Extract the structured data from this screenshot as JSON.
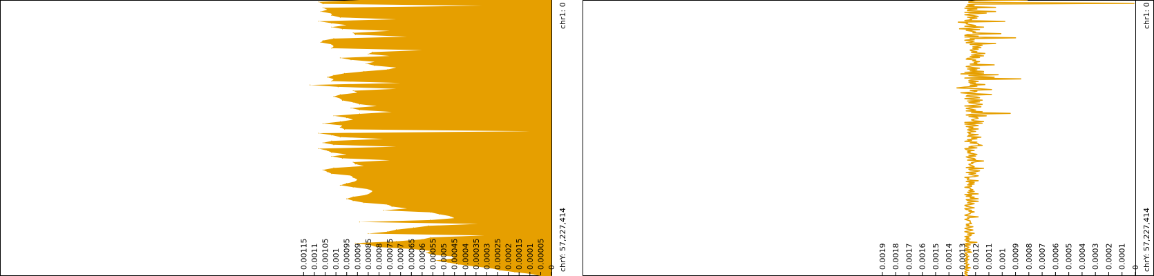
{
  "chart_data": [
    {
      "type": "area",
      "orientation": "vertical",
      "color": "#e69f00",
      "genome_start_label": "chr1: 0",
      "genome_end_label": "chrY: 57,227,414",
      "ylim": [
        0,
        0.00118
      ],
      "ticks": [
        {
          "value": 0,
          "label": "0"
        },
        {
          "value": 5e-05,
          "label": "0.00005"
        },
        {
          "value": 0.0001,
          "label": "0.0001"
        },
        {
          "value": 0.00015,
          "label": "0.00015"
        },
        {
          "value": 0.0002,
          "label": "0.0002"
        },
        {
          "value": 0.00025,
          "label": "0.00025"
        },
        {
          "value": 0.0003,
          "label": "0.0003"
        },
        {
          "value": 0.00035,
          "label": "0.00035"
        },
        {
          "value": 0.0004,
          "label": "0.0004"
        },
        {
          "value": 0.00045,
          "label": "0.00045"
        },
        {
          "value": 0.0005,
          "label": "0.0005"
        },
        {
          "value": 0.00055,
          "label": "0.00055"
        },
        {
          "value": 0.0006,
          "label": "0.0006"
        },
        {
          "value": 0.00065,
          "label": "0.00065"
        },
        {
          "value": 0.0007,
          "label": "0.0007"
        },
        {
          "value": 0.00075,
          "label": "0.00075"
        },
        {
          "value": 0.0008,
          "label": "0.0008"
        },
        {
          "value": 0.00085,
          "label": "0.00085"
        },
        {
          "value": 0.0009,
          "label": "0.0009"
        },
        {
          "value": 0.00095,
          "label": "0.00095"
        },
        {
          "value": 0.001,
          "label": "0.001"
        },
        {
          "value": 0.00105,
          "label": "0.00105"
        },
        {
          "value": 0.0011,
          "label": "0.0011"
        },
        {
          "value": 0.00115,
          "label": "0.00115"
        }
      ],
      "values": [
        0.00089,
        0.00108,
        0.00106,
        0.00032,
        0.00106,
        0.00104,
        0.00107,
        0.00102,
        0.00102,
        0.00098,
        0.00072,
        0.00108,
        0.00102,
        0.00095,
        0.00102,
        0.00097,
        0.00075,
        0.00092,
        0.00091,
        0.00067,
        0.00101,
        0.00106,
        0.00107,
        0.00102,
        0.00101,
        0.00102,
        0.0006,
        0.00083,
        0.00085,
        0.00075,
        0.00098,
        0.00093,
        0.00082,
        0.00086,
        0.00082,
        0.00072,
        0.00076,
        0.00087,
        0.00096,
        0.00101,
        0.00104,
        0.00101,
        0.00102,
        0.0007,
        0.00112,
        0.00099,
        0.00072,
        0.00092,
        0.0009,
        0.00098,
        0.00101,
        0.00098,
        0.00097,
        0.00092,
        0.00089,
        0.00081,
        0.00093,
        0.00089,
        0.00074,
        0.00089,
        0.00101,
        0.00095,
        0.00092,
        0.00098,
        0.00106,
        0.00097,
        0.00098,
        0.00096,
        0.0001,
        0.00108,
        0.00102,
        0.00098,
        0.00078,
        0.00102,
        0.00106,
        0.00101,
        0.00072,
        0.00108,
        0.00104,
        0.00102,
        0.00095,
        0.00102,
        0.00097,
        0.00075,
        0.00092,
        0.00091,
        0.00087,
        0.00101,
        0.00106,
        0.00104,
        0.00102,
        0.00093,
        0.00092,
        0.0009,
        0.00091,
        0.00095,
        0.00098,
        0.00092,
        0.00085,
        0.00083,
        0.00084,
        0.00086,
        0.00092,
        0.00095,
        0.00092,
        0.00087,
        0.00076,
        0.00074,
        0.00067,
        0.00078,
        0.00056,
        0.00052,
        0.00047,
        0.00045,
        0.00056,
        0.00089,
        0.00034,
        0.00057,
        0.00064,
        0.00072,
        0.00076,
        0.00085,
        0.00031,
        0.00056,
        0.0006,
        0.00072,
        0.00091,
        0.00084,
        0.00081,
        0.00065,
        0.00056,
        0.00058,
        0.00055,
        0.00045,
        0.00046,
        0.00054,
        0.00048,
        0.00043,
        0.00036,
        0.00028,
        0.00024,
        0.00017,
        9e-05,
        5e-05
      ]
    },
    {
      "type": "line",
      "orientation": "vertical",
      "color": "#e69f00",
      "genome_start_label": "chr1: 0",
      "genome_end_label": "chrY: 57,227,414",
      "ylim": [
        0,
        0.00192
      ],
      "ticks": [
        {
          "value": 0,
          "label": "0"
        },
        {
          "value": 0.0001,
          "label": "0.0001"
        },
        {
          "value": 0.0002,
          "label": "0.0002"
        },
        {
          "value": 0.0003,
          "label": "0.0003"
        },
        {
          "value": 0.0004,
          "label": "0.0004"
        },
        {
          "value": 0.0005,
          "label": "0.0005"
        },
        {
          "value": 0.0006,
          "label": "0.0006"
        },
        {
          "value": 0.0007,
          "label": "0.0007"
        },
        {
          "value": 0.0008,
          "label": "0.0008"
        },
        {
          "value": 0.0009,
          "label": "0.0009"
        },
        {
          "value": 0.001,
          "label": "0.001"
        },
        {
          "value": 0.0011,
          "label": "0.0011"
        },
        {
          "value": 0.0012,
          "label": "0.0012"
        },
        {
          "value": 0.0013,
          "label": "0.0013"
        },
        {
          "value": 0.0014,
          "label": "0.0014"
        },
        {
          "value": 0.0015,
          "label": "0.0015"
        },
        {
          "value": 0.0016,
          "label": "0.0016"
        },
        {
          "value": 0.0017,
          "label": "0.0017"
        },
        {
          "value": 0.0018,
          "label": "0.0018"
        },
        {
          "value": 0.0019,
          "label": "0.0019"
        }
      ],
      "values": [
        0.00081,
        0.0012,
        0.00125,
        0.00125,
        1e-05,
        0.0012,
        0.00126,
        0.00121,
        0.00127,
        0.00105,
        0.00128,
        0.00119,
        0.00126,
        0.00126,
        0.00105,
        0.00128,
        0.00112,
        0.00124,
        0.00128,
        0.00122,
        0.00118,
        0.00126,
        0.00119,
        0.00124,
        0.00123,
        0.00128,
        0.00098,
        0.00133,
        0.00126,
        0.00127,
        0.00124,
        0.0012,
        0.00128,
        0.00114,
        0.00123,
        0.00132,
        0.00117,
        0.00127,
        0.00123,
        0.0012,
        0.00122,
        0.00101,
        0.00126,
        0.00128,
        0.00118,
        0.00128,
        0.0009,
        0.00124,
        0.00121,
        0.00128,
        0.00121,
        0.00123,
        0.00127,
        0.00105,
        0.00124,
        0.00115,
        0.00117,
        0.00122,
        0.00116,
        0.00122,
        0.00118,
        0.00124,
        0.00123,
        0.00119,
        0.00123,
        0.00113,
        0.00119,
        0.00123,
        0.00114,
        0.00124,
        0.00117,
        0.00126,
        0.00127,
        0.0012,
        0.00122,
        0.00117,
        0.00121,
        0.00119,
        0.00124,
        0.00106,
        0.00122,
        0.00127,
        0.00124,
        0.00117,
        0.00126,
        0.00119,
        0.00124,
        0.00114,
        0.00128,
        0.00114,
        0.00131,
        0.00103,
        0.00125,
        0.00118,
        0.00106,
        0.00128,
        0.00086,
        0.00123,
        0.00125,
        0.00118,
        0.00125,
        0.0012,
        0.00124,
        0.00113,
        0.00124,
        0.00119,
        0.00128,
        0.00134,
        0.00118,
        0.00108,
        0.00124,
        0.00119,
        0.00121,
        0.00131,
        0.00122,
        0.00108,
        0.00126,
        0.00127,
        0.00119,
        0.00117,
        0.00128,
        0.00123,
        0.00115,
        0.00126,
        0.00117,
        0.00125,
        0.00121,
        0.00115,
        0.0012,
        0.00128,
        0.00116,
        0.00124,
        0.00127,
        0.00123,
        0.0012,
        0.00127,
        0.00115,
        0.00123,
        0.00094,
        0.00123,
        0.00127,
        0.00112,
        0.00125,
        0.00119,
        0.00118,
        0.00121,
        0.00123,
        0.00121,
        0.00114,
        0.00128,
        0.00115,
        0.00128,
        0.00121,
        0.00118,
        0.00127,
        0.00122,
        0.00125,
        0.00118,
        0.00126,
        0.00124,
        0.0012,
        0.00126,
        0.00124,
        0.00125,
        0.00118,
        0.00125,
        0.00126,
        0.00116,
        0.00123,
        0.00119,
        0.00126,
        0.00123,
        0.00128,
        0.00119,
        0.00124,
        0.00118,
        0.00118,
        0.00115,
        0.00123,
        0.00125,
        0.00119,
        0.00128,
        0.00127,
        0.00121,
        0.00126,
        0.00124,
        0.00126,
        0.00122,
        0.00119,
        0.00125,
        0.0012,
        0.00127,
        0.00125,
        0.00121,
        0.0012,
        0.00126,
        0.00114,
        0.0012,
        0.00123,
        0.00122,
        0.00125,
        0.00124,
        0.00122,
        0.00121,
        0.00127,
        0.00114,
        0.00125,
        0.00124,
        0.00117,
        0.0012,
        0.00127,
        0.0012,
        0.00125,
        0.00122,
        0.00118,
        0.00121,
        0.00128,
        0.00125,
        0.00126,
        0.00126,
        0.00118,
        0.00127,
        0.00121,
        0.00125,
        0.00121,
        0.00126,
        0.00123,
        0.00123,
        0.00128,
        0.00124,
        0.00124,
        0.00122,
        0.00125,
        0.00121,
        0.00126,
        0.00125,
        0.00118,
        0.00128,
        0.00123,
        0.00127,
        0.00121,
        0.00124,
        0.00118,
        0.00127,
        0.00126,
        0.00118,
        0.00125,
        0.00126,
        0.00121,
        0.00124,
        0.00128,
        0.00127,
        0.00124,
        0.00121,
        0.00128,
        0.00127,
        0.00123,
        0.00125,
        0.00121,
        0.00124,
        0.00124,
        0.00126,
        0.00128,
        0.00125,
        0.00118,
        0.00126,
        0.00125,
        0.00128,
        0.00126,
        0.00124,
        0.00124,
        0.00124,
        0.00123,
        0.00127,
        0.00125,
        0.00127,
        0.00122,
        0.00125,
        0.00128,
        0.00126,
        0.00122,
        0.00124,
        0.00128,
        0.00126,
        0.00121,
        0.00126,
        0.00123,
        0.00124,
        0.00128,
        0.00125,
        0.00127,
        0.00124,
        0.00128,
        0.00125,
        0.00127,
        0.00119,
        0.00126,
        0.00128,
        0.00124,
        0.00128,
        0.00127,
        0.00125,
        0.00126,
        0.00128,
        0.00124,
        0.00128,
        0.00125,
        0.00123,
        0.00128,
        0.00127,
        0.00126,
        0.00128,
        0.00125,
        0.00127,
        0.00126,
        0.00128,
        0.00125,
        0.00127,
        0.00128,
        0.00126,
        0.00127,
        0.00128,
        0.00125,
        0.00127,
        0.00126,
        0.00128,
        0.00124,
        0.00127,
        0.00128,
        0.00125,
        0.00127,
        0.00128,
        0.00126,
        0.00128,
        0.00127,
        0.00126,
        0.00128
      ]
    }
  ]
}
